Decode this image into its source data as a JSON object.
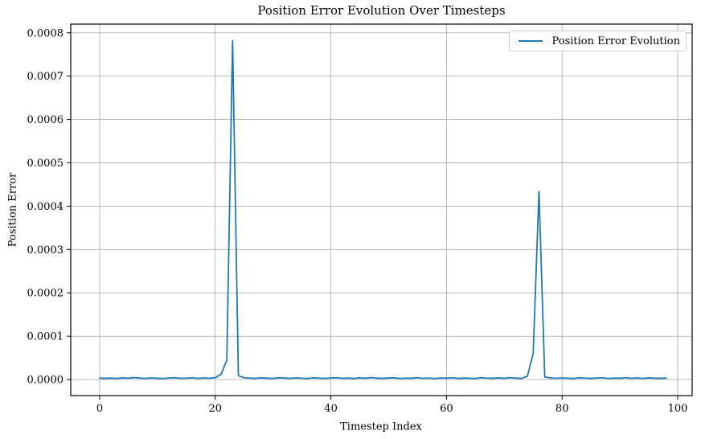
{
  "chart_data": {
    "type": "line",
    "title": "Position Error Evolution Over Timesteps",
    "xlabel": "Timestep Index",
    "ylabel": "Position Error",
    "grid": true,
    "legend": {
      "position": "upper right",
      "entries": [
        "Position Error Evolution"
      ]
    },
    "colors": {
      "line": "#1f77b4",
      "grid": "#b0b0b0",
      "spine": "#000000",
      "legend_border": "#cccccc",
      "background": "#ffffff"
    },
    "xlim": [
      -5.0,
      102.5
    ],
    "ylim": [
      -3.7e-05,
      0.00082
    ],
    "xtick_labels": [
      "0",
      "20",
      "40",
      "60",
      "80",
      "100"
    ],
    "ytick_labels": [
      "0.0000",
      "0.0001",
      "0.0002",
      "0.0003",
      "0.0004",
      "0.0005",
      "0.0006",
      "0.0007",
      "0.0008"
    ],
    "series": [
      {
        "name": "Position Error Evolution",
        "x": [
          0,
          1,
          2,
          3,
          4,
          5,
          6,
          7,
          8,
          9,
          10,
          11,
          12,
          13,
          14,
          15,
          16,
          17,
          18,
          19,
          20,
          21,
          22,
          23,
          24,
          25,
          26,
          27,
          28,
          29,
          30,
          31,
          32,
          33,
          34,
          35,
          36,
          37,
          38,
          39,
          40,
          41,
          42,
          43,
          44,
          45,
          46,
          47,
          48,
          49,
          50,
          51,
          52,
          53,
          54,
          55,
          56,
          57,
          58,
          59,
          60,
          61,
          62,
          63,
          64,
          65,
          66,
          67,
          68,
          69,
          70,
          71,
          72,
          73,
          74,
          75,
          76,
          77,
          78,
          79,
          80,
          81,
          82,
          83,
          84,
          85,
          86,
          87,
          88,
          89,
          90,
          91,
          92,
          93,
          94,
          95,
          96,
          97,
          98
        ],
        "y": [
          3.2e-06,
          2.8e-06,
          3.5e-06,
          2.4e-06,
          3.9e-06,
          3.1e-06,
          4.6e-06,
          3.4e-06,
          2.7e-06,
          3.8e-06,
          3e-06,
          2.5e-06,
          3.6e-06,
          4.2e-06,
          2.9e-06,
          3.3e-06,
          4e-06,
          2.6e-06,
          3.7e-06,
          3.1e-06,
          4.4e-06,
          1.2e-05,
          4.5e-05,
          0.000782,
          9e-06,
          4.1e-06,
          3.3e-06,
          2.8e-06,
          3.9e-06,
          3.2e-06,
          2.6e-06,
          4.3e-06,
          3.5e-06,
          2.9e-06,
          3.8e-06,
          3.1e-06,
          2.4e-06,
          4e-06,
          3.4e-06,
          2.7e-06,
          3.6e-06,
          4.2e-06,
          2.9e-06,
          3.3e-06,
          2.5e-06,
          3.9e-06,
          3e-06,
          4.5e-06,
          3.2e-06,
          2.8e-06,
          3.7e-06,
          4.1e-06,
          2.6e-06,
          3.4e-06,
          3e-06,
          4.3e-06,
          2.9e-06,
          3.6e-06,
          2.5e-06,
          3.8e-06,
          3.2e-06,
          4e-06,
          2.7e-06,
          3.5e-06,
          3.1e-06,
          2.4e-06,
          4.2e-06,
          3.3e-06,
          2.8e-06,
          3.9e-06,
          3e-06,
          4.4e-06,
          3.2e-06,
          2.6e-06,
          8e-06,
          6e-05,
          0.000434,
          6e-06,
          3.5e-06,
          2.9e-06,
          3.8e-06,
          3.1e-06,
          2.5e-06,
          4.1e-06,
          3.3e-06,
          2.8e-06,
          3.6e-06,
          4e-06,
          2.7e-06,
          3.4e-06,
          3e-06,
          4.3e-06,
          2.9e-06,
          3.7e-06,
          2.6e-06,
          3.9e-06,
          3.2e-06,
          2.8e-06,
          3.5e-06
        ]
      }
    ]
  }
}
